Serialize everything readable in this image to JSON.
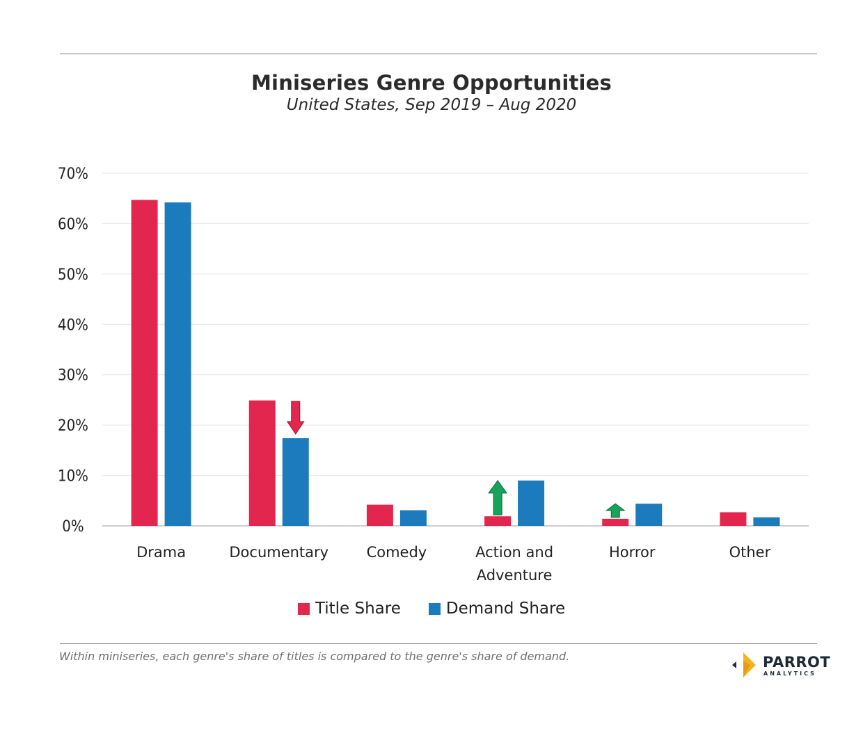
{
  "header": {
    "title": "Miniseries Genre Opportunities",
    "subtitle": "United States,  Sep 2019 – Aug 2020"
  },
  "chart_data": {
    "type": "bar",
    "title": "Miniseries Genre Opportunities",
    "subtitle": "United States,  Sep 2019 – Aug 2020",
    "categories": [
      "Drama",
      "Documentary",
      "Comedy",
      "Action and Adventure",
      "Horror",
      "Other"
    ],
    "category_lines": [
      [
        "Drama"
      ],
      [
        "Documentary"
      ],
      [
        "Comedy"
      ],
      [
        "Action and",
        "Adventure"
      ],
      [
        "Horror"
      ],
      [
        "Other"
      ]
    ],
    "series": [
      {
        "name": "Title Share",
        "color": "#e3264d",
        "values": [
          64.7,
          24.9,
          4.2,
          1.9,
          1.4,
          2.7
        ]
      },
      {
        "name": "Demand Share",
        "color": "#1b7bbd",
        "values": [
          64.2,
          17.4,
          3.1,
          9.0,
          4.4,
          1.7
        ]
      }
    ],
    "yticks": [
      "70%",
      "60%",
      "50%",
      "40%",
      "30%",
      "20%",
      "10%",
      "0%"
    ],
    "ylim": [
      0,
      70
    ],
    "xlabel": "",
    "ylabel": "",
    "grid": true,
    "legend_position": "bottom-center",
    "annotations": [
      {
        "category": "Documentary",
        "direction": "down",
        "color": "#e3264d"
      },
      {
        "category": "Action and Adventure",
        "direction": "up",
        "color": "#17a35a"
      },
      {
        "category": "Horror",
        "direction": "up",
        "color": "#17a35a"
      }
    ]
  },
  "legend": {
    "items": [
      {
        "label": "Title Share",
        "color": "#e3264d"
      },
      {
        "label": "Demand Share",
        "color": "#1b7bbd"
      }
    ]
  },
  "footer": {
    "note": "Within miniseries, each genre's share of titles is compared to the genre's share of demand.",
    "brand_main": "PARROT",
    "brand_sub": "ANALYTICS"
  },
  "colors": {
    "title_share": "#e3264d",
    "demand_share": "#1b7bbd",
    "up_arrow": "#17a35a",
    "down_arrow": "#e3264d",
    "logo_accent": "#f5b320",
    "logo_text": "#1e2a38"
  }
}
